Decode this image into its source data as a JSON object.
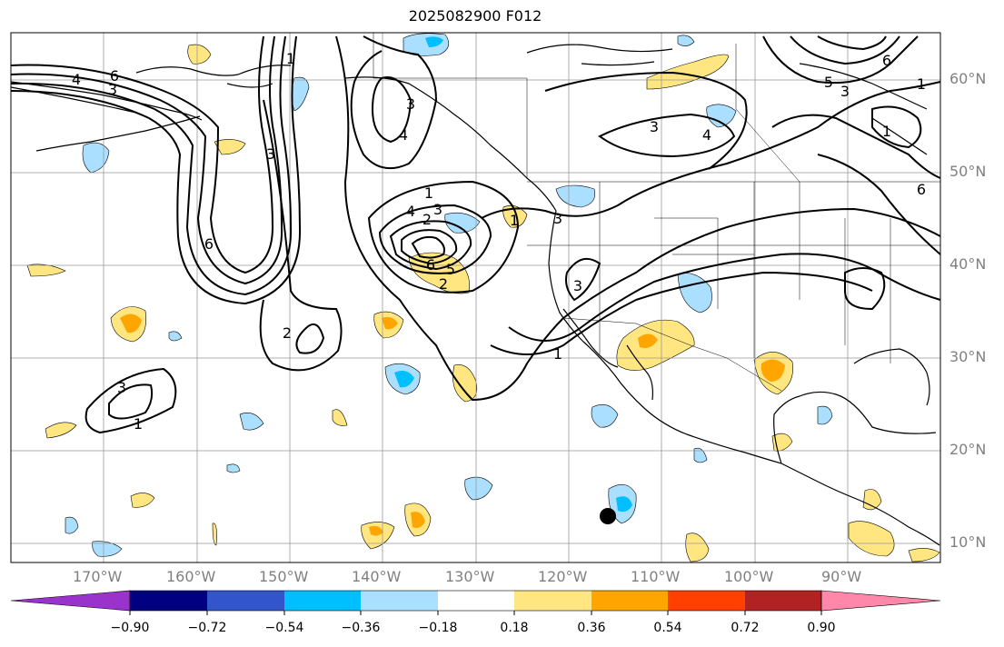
{
  "title": "2025082900 F012",
  "map": {
    "lat_labels": [
      "60°N",
      "50°N",
      "40°N",
      "30°N",
      "20°N",
      "10°N"
    ],
    "lon_labels": [
      "170°W",
      "160°W",
      "150°W",
      "140°W",
      "130°W",
      "120°W",
      "110°W",
      "100°W",
      "90°W"
    ],
    "contour_labels": [
      "4",
      "6",
      "3",
      "1",
      "3",
      "4",
      "3",
      "1",
      "4",
      "3",
      "2",
      "6",
      "5",
      "2",
      "6",
      "2",
      "1",
      "3",
      "1",
      "3",
      "1",
      "3",
      "3",
      "4",
      "3",
      "6",
      "5",
      "1",
      "1",
      "6"
    ],
    "marker": "black-dot"
  },
  "colorbar": {
    "colors": [
      "#9933cc",
      "#000080",
      "#3355cc",
      "#00bfff",
      "#aadfff",
      "#ffffff",
      "#ffe680",
      "#ffa500",
      "#ff4000",
      "#b22222",
      "#ff88aa"
    ],
    "tick_labels": [
      "−0.90",
      "−0.72",
      "−0.54",
      "−0.36",
      "−0.18",
      "0.18",
      "0.36",
      "0.54",
      "0.72",
      "0.90"
    ]
  }
}
